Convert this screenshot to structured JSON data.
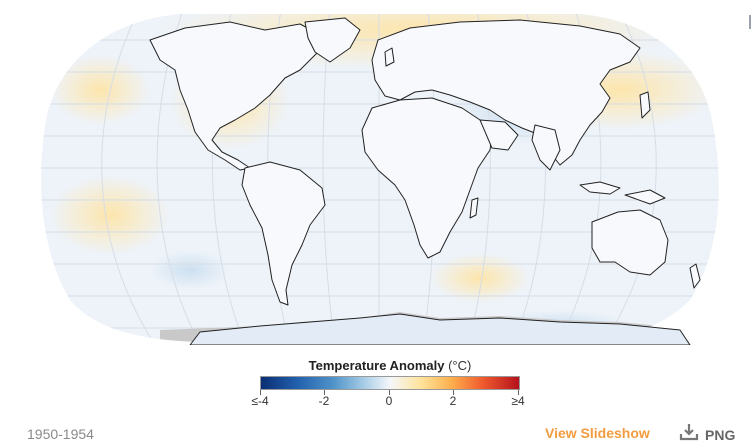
{
  "map": {
    "projection": "robinson-like",
    "ocean_color": "#f2f6fb",
    "land_stroke": "#222222",
    "graticule_color": "#d6dde6",
    "no_data_color": "#c9c9c9",
    "anomaly_palette": {
      "cold": "#2160ad",
      "neutral": "#f4f7fb",
      "warm": "#fdae4c",
      "hot": "#b5121b"
    }
  },
  "legend": {
    "title": "Temperature Anomaly",
    "unit": "(°C)",
    "ticks": [
      "≤-4",
      "-2",
      "0",
      "2",
      "≥4"
    ]
  },
  "footer": {
    "period": "1950-1954",
    "slideshow_label": "View Slideshow",
    "download_label": "PNG",
    "download_icon": "download-icon"
  }
}
